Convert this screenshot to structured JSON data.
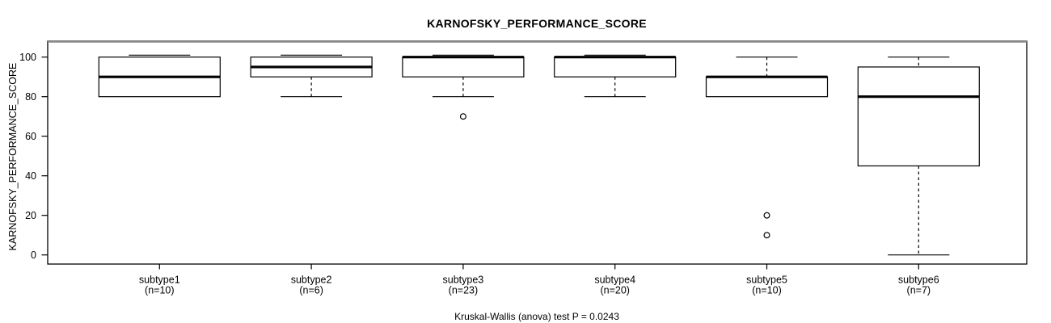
{
  "colors": {
    "background": "#ffffff",
    "line": "#000000",
    "frame_top_shade": "#8a8a8a",
    "box_fill": "#ffffff"
  },
  "chart_data": {
    "type": "boxplot",
    "title": "KARNOFSKY_PERFORMANCE_SCORE",
    "ylabel": "KARNOFSKY_PERFORMANCE_SCORE",
    "xlabel": "",
    "footer": "Kruskal-Wallis (anova) test P = 0.0243",
    "ylim": [
      0,
      100
    ],
    "yticks": [
      0,
      20,
      40,
      60,
      80,
      100
    ],
    "grid": "off",
    "legend": "none",
    "groups": [
      {
        "label": "subtype1",
        "sublabel": "(n=10)",
        "n": 10,
        "whisker_low": 80,
        "q1": 80,
        "median": 90,
        "q3": 100,
        "whisker_high": 100,
        "outliers": []
      },
      {
        "label": "subtype2",
        "sublabel": "(n=6)",
        "n": 6,
        "whisker_low": 80,
        "q1": 90,
        "median": 95,
        "q3": 100,
        "whisker_high": 100,
        "outliers": []
      },
      {
        "label": "subtype3",
        "sublabel": "(n=23)",
        "n": 23,
        "whisker_low": 80,
        "q1": 90,
        "median": 100,
        "q3": 100,
        "whisker_high": 100,
        "outliers": [
          70
        ]
      },
      {
        "label": "subtype4",
        "sublabel": "(n=20)",
        "n": 20,
        "whisker_low": 80,
        "q1": 90,
        "median": 100,
        "q3": 100,
        "whisker_high": 100,
        "outliers": []
      },
      {
        "label": "subtype5",
        "sublabel": "(n=10)",
        "n": 10,
        "whisker_low": 80,
        "q1": 80,
        "median": 90,
        "q3": 90,
        "whisker_high": 100,
        "outliers": [
          20,
          10
        ]
      },
      {
        "label": "subtype6",
        "sublabel": "(n=7)",
        "n": 7,
        "whisker_low": 0,
        "q1": 45,
        "median": 80,
        "q3": 95,
        "whisker_high": 100,
        "outliers": []
      }
    ]
  }
}
